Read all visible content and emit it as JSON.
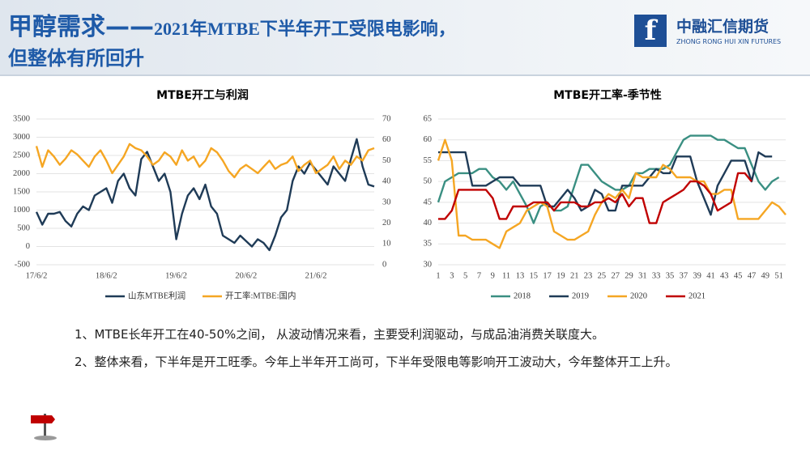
{
  "header": {
    "title_main": "甲醇需求——",
    "title_rest": "2021年MTBE下半年开工受限电影响，",
    "title_line2": "但整体有所回升"
  },
  "logo": {
    "name": "中融汇信期货",
    "english": "ZHONG RONG HUI XIN FUTURES"
  },
  "notes": [
    "1、MTBE长年开工在40-50%之间， 从波动情况来看，主要受利润驱动，与成品油消费关联度大。",
    "2、整体来看，下半年是开工旺季。今年上半年开工尚可，下半年受限电等影响开工波动大，今年整体开工上升。"
  ],
  "chart_data": [
    {
      "type": "line",
      "title": "MTBE开工与利润",
      "categories": [
        "17/6/2",
        null,
        null,
        null,
        null,
        null,
        null,
        null,
        null,
        null,
        null,
        null,
        "18/6/2",
        null,
        null,
        null,
        null,
        null,
        null,
        null,
        null,
        null,
        null,
        null,
        "19/6/2",
        null,
        null,
        null,
        null,
        null,
        null,
        null,
        null,
        null,
        null,
        null,
        "20/6/2",
        null,
        null,
        null,
        null,
        null,
        null,
        null,
        null,
        null,
        null,
        null,
        "21/6/2",
        null,
        null,
        null,
        null,
        null,
        null,
        null,
        null,
        null,
        null
      ],
      "ylim": [
        -500,
        3500
      ],
      "yticks": [
        -500,
        0,
        500,
        1000,
        1500,
        2000,
        2500,
        3000,
        3500
      ],
      "y2lim": [
        0,
        70
      ],
      "y2ticks": [
        0,
        10,
        20,
        30,
        40,
        50,
        60,
        70
      ],
      "grid": true,
      "series": [
        {
          "name": "山东MTBE利润",
          "color": "#1f3b57",
          "values": [
            950,
            600,
            900,
            900,
            950,
            700,
            550,
            900,
            1100,
            1000,
            1400,
            1500,
            1600,
            1200,
            1800,
            2000,
            1600,
            1400,
            2400,
            2600,
            2200,
            1800,
            2000,
            1500,
            200,
            900,
            1400,
            1600,
            1300,
            1700,
            1100,
            900,
            300,
            200,
            100,
            300,
            150,
            0,
            200,
            100,
            -100,
            300,
            800,
            1000,
            1800,
            2200,
            2000,
            2300,
            2100,
            1900,
            1700,
            2200,
            2000,
            1800,
            2400,
            2950,
            2200,
            1700,
            1650
          ]
        },
        {
          "name": "开工率:MTBE:国内",
          "color": "#f5a623",
          "axis": "y2",
          "values": [
            57,
            47,
            55,
            52,
            48,
            51,
            55,
            53,
            50,
            47,
            52,
            55,
            50,
            44,
            48,
            52,
            58,
            56,
            55,
            52,
            48,
            50,
            54,
            52,
            48,
            55,
            50,
            52,
            47,
            50,
            56,
            54,
            50,
            45,
            42,
            46,
            48,
            46,
            44,
            47,
            50,
            46,
            48,
            49,
            52,
            45,
            48,
            50,
            44,
            46,
            48,
            52,
            46,
            50,
            48,
            52,
            50,
            55,
            56
          ]
        }
      ]
    },
    {
      "type": "line",
      "title": "MTBE开工率-季节性",
      "x": [
        1,
        2,
        3,
        4,
        5,
        6,
        7,
        8,
        9,
        10,
        11,
        12,
        13,
        14,
        15,
        16,
        17,
        18,
        19,
        20,
        21,
        22,
        23,
        24,
        25,
        26,
        27,
        28,
        29,
        30,
        31,
        32,
        33,
        34,
        35,
        36,
        37,
        38,
        39,
        40,
        41,
        42,
        43,
        44,
        45,
        46,
        47,
        48,
        49,
        50,
        51,
        52
      ],
      "xlim": [
        1,
        52
      ],
      "xticks": [
        1,
        3,
        5,
        7,
        9,
        11,
        13,
        15,
        17,
        19,
        21,
        23,
        25,
        27,
        29,
        31,
        33,
        35,
        37,
        39,
        41,
        43,
        45,
        47,
        49,
        51
      ],
      "ylim": [
        30,
        65
      ],
      "yticks": [
        30,
        35,
        40,
        45,
        50,
        55,
        60,
        65
      ],
      "grid": true,
      "series": [
        {
          "name": "2018",
          "color": "#3a8f82",
          "values": [
            45,
            50,
            51,
            52,
            52,
            52,
            53,
            53,
            51,
            50,
            48,
            50,
            47,
            44,
            40,
            44,
            45,
            43,
            43,
            44,
            49,
            54,
            54,
            52,
            50,
            49,
            48,
            48,
            49,
            52,
            52,
            53,
            53,
            53,
            54,
            57,
            60,
            61,
            61,
            61,
            61,
            60,
            60,
            59,
            58,
            58,
            54,
            50,
            48,
            50,
            51,
            null
          ]
        },
        {
          "name": "2019",
          "color": "#1f3b57",
          "values": [
            57,
            57,
            57,
            57,
            57,
            49,
            49,
            49,
            50,
            51,
            51,
            51,
            49,
            49,
            49,
            49,
            44,
            44,
            46,
            48,
            46,
            43,
            44,
            48,
            47,
            43,
            43,
            49,
            49,
            49,
            49,
            51,
            53,
            52,
            52,
            56,
            56,
            56,
            50,
            46,
            42,
            49,
            52,
            55,
            55,
            55,
            50,
            57,
            56,
            56,
            null,
            null
          ]
        },
        {
          "name": "2020",
          "color": "#f5a623",
          "values": [
            55,
            60,
            55,
            37,
            37,
            36,
            36,
            36,
            35,
            34,
            38,
            39,
            40,
            43,
            44,
            45,
            44,
            38,
            37,
            36,
            36,
            37,
            38,
            42,
            45,
            47,
            46,
            48,
            46,
            52,
            51,
            51,
            51,
            54,
            53,
            51,
            51,
            51,
            50,
            50,
            47,
            47,
            48,
            48,
            41,
            41,
            41,
            41,
            43,
            45,
            44,
            42
          ]
        },
        {
          "name": "2021",
          "color": "#c00000",
          "values": [
            41,
            41,
            43,
            48,
            48,
            48,
            48,
            48,
            46,
            41,
            41,
            44,
            44,
            44,
            45,
            45,
            45,
            43,
            45,
            45,
            45,
            44,
            44,
            45,
            45,
            46,
            45,
            47,
            44,
            46,
            46,
            40,
            40,
            45,
            46,
            47,
            48,
            50,
            50,
            49,
            47,
            43,
            44,
            45,
            52,
            52,
            50,
            null,
            null,
            null,
            null,
            null
          ]
        }
      ]
    }
  ]
}
